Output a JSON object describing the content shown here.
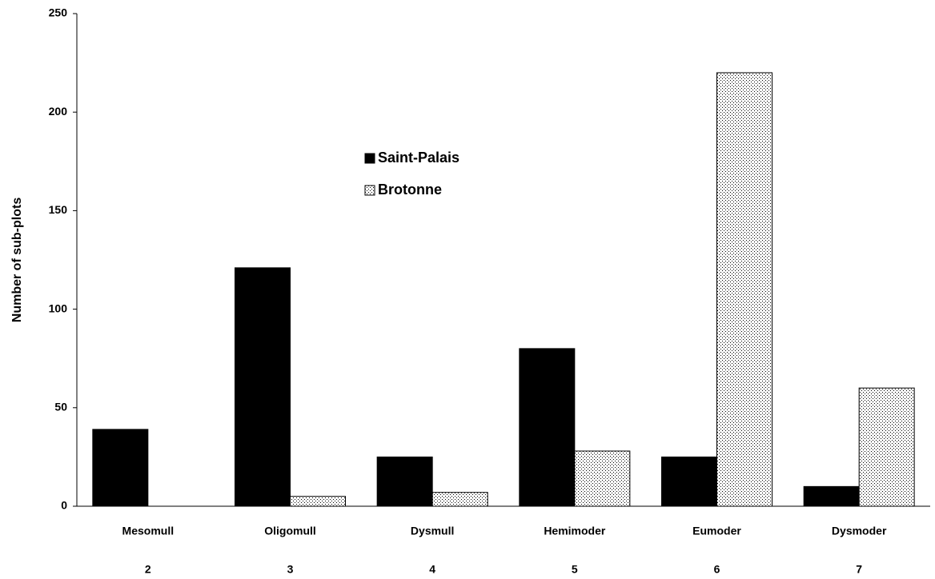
{
  "chart_data": {
    "type": "bar",
    "y_label": "Number of sub-plots",
    "categories": [
      "Mesomull",
      "Oligomull",
      "Dysmull",
      "Hemimoder",
      "Eumoder",
      "Dysmoder"
    ],
    "category_numbers": [
      2,
      3,
      4,
      5,
      6,
      7
    ],
    "series": [
      {
        "name": "Saint-Palais",
        "color": "#000000",
        "fill_pattern": "solid",
        "values": [
          39,
          121,
          25,
          80,
          25,
          10
        ]
      },
      {
        "name": "Brotonne",
        "color": "#000000",
        "fill_pattern": "dots",
        "values": [
          0,
          5,
          7,
          28,
          220,
          60
        ]
      }
    ],
    "ylim": [
      0,
      250
    ],
    "yticks": [
      0,
      50,
      100,
      150,
      200,
      250
    ],
    "grid": false
  }
}
